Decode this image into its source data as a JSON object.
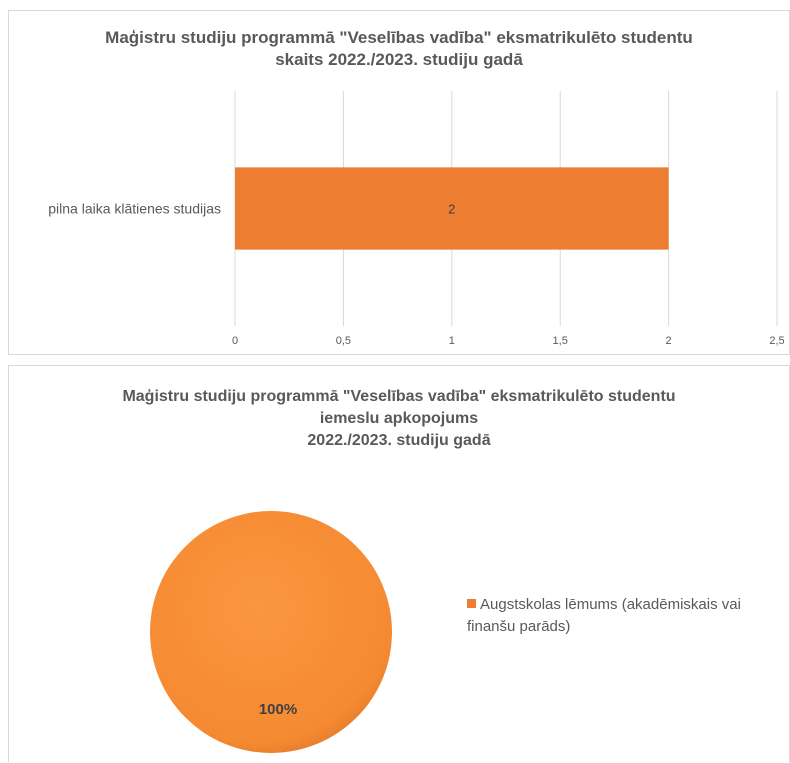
{
  "charts": {
    "bar": {
      "title_lines": [
        "Maģistru studiju programmā \"Veselības vadība\" eksmatrikulēto studentu",
        "skaits  2022./2023. studiju gadā"
      ]
    },
    "pie": {
      "title_lines": [
        "Maģistru studiju programmā \"Veselības vadība\" eksmatrikulēto studentu",
        "iemeslu apkopojums",
        "2022./2023. studiju gadā"
      ],
      "legend_label": "Augstskolas lēmums (akadēmiskais vai finanšu parāds)",
      "slice_label": "100%"
    }
  },
  "colors": {
    "bar": "#ed7d31",
    "pie": "#f58a32",
    "grid": "#d9d9d9",
    "text": "#595959"
  },
  "chart_data": [
    {
      "type": "bar",
      "orientation": "horizontal",
      "title": "Maģistru studiju programmā \"Veselības vadība\" eksmatrikulēto studentu skaits  2022./2023. studiju gadā",
      "categories": [
        "pilna laika klātienes studijas"
      ],
      "values": [
        2
      ],
      "data_labels": [
        "2"
      ],
      "xlim": [
        0,
        2.5
      ],
      "xticks": [
        0,
        0.5,
        1,
        1.5,
        2,
        2.5
      ],
      "xtick_labels": [
        "0",
        "0,5",
        "1",
        "1,5",
        "2",
        "2,5"
      ],
      "grid": true
    },
    {
      "type": "pie",
      "title": "Maģistru studiju programmā \"Veselības vadība\" eksmatrikulēto studentu iemeslu apkopojums 2022./2023. studiju gadā",
      "categories": [
        "Augstskolas lēmums (akadēmiskais vai finanšu parāds)"
      ],
      "values": [
        100
      ],
      "data_labels": [
        "100%"
      ],
      "legend": "right"
    }
  ]
}
